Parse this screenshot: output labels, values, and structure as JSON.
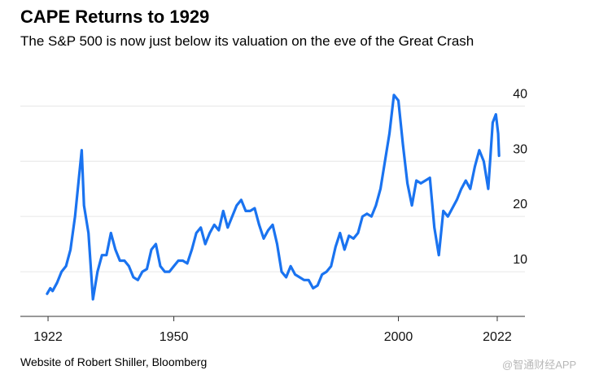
{
  "title": "CAPE Returns to 1929",
  "subtitle": "The S&P 500 is now just below its valuation on the eve of the Great Crash",
  "source": "Website of Robert Shiller, Bloomberg",
  "watermark": "@智通财经APP",
  "colors": {
    "line": "#1a73f0",
    "grid": "#e6e6e6",
    "axis": "#333333"
  },
  "chart_data": {
    "type": "line",
    "title": "CAPE Returns to 1929",
    "xlabel": "",
    "ylabel": "",
    "xlim": [
      1920,
      2024
    ],
    "ylim": [
      2.5,
      43
    ],
    "y_axis_position": "right",
    "grid": "horizontal",
    "x_ticks": [
      1922,
      1950,
      2000,
      2022
    ],
    "y_ticks": [
      10,
      20,
      30,
      40
    ],
    "series": [
      {
        "values": [
          [
            1921.8,
            6
          ],
          [
            1922.5,
            7
          ],
          [
            1923,
            6.5
          ],
          [
            1924,
            8
          ],
          [
            1925,
            10
          ],
          [
            1926,
            11
          ],
          [
            1927,
            14
          ],
          [
            1928,
            20
          ],
          [
            1929.5,
            32
          ],
          [
            1930,
            22
          ],
          [
            1931,
            17
          ],
          [
            1932,
            5
          ],
          [
            1933,
            10
          ],
          [
            1934,
            13
          ],
          [
            1935,
            13
          ],
          [
            1936,
            17
          ],
          [
            1937,
            14
          ],
          [
            1938,
            12
          ],
          [
            1939,
            12
          ],
          [
            1940,
            11
          ],
          [
            1941,
            9
          ],
          [
            1942,
            8.5
          ],
          [
            1943,
            10
          ],
          [
            1944,
            10.5
          ],
          [
            1945,
            14
          ],
          [
            1946,
            15
          ],
          [
            1947,
            11
          ],
          [
            1948,
            10
          ],
          [
            1949,
            10
          ],
          [
            1950,
            11
          ],
          [
            1951,
            12
          ],
          [
            1952,
            12
          ],
          [
            1953,
            11.5
          ],
          [
            1954,
            14
          ],
          [
            1955,
            17
          ],
          [
            1956,
            18
          ],
          [
            1957,
            15
          ],
          [
            1958,
            17
          ],
          [
            1959,
            18.5
          ],
          [
            1960,
            17.5
          ],
          [
            1961,
            21
          ],
          [
            1962,
            18
          ],
          [
            1963,
            20
          ],
          [
            1964,
            22
          ],
          [
            1965,
            23
          ],
          [
            1966,
            21
          ],
          [
            1967,
            21
          ],
          [
            1968,
            21.5
          ],
          [
            1969,
            18.5
          ],
          [
            1970,
            16
          ],
          [
            1971,
            17.5
          ],
          [
            1972,
            18.5
          ],
          [
            1973,
            15
          ],
          [
            1974,
            10
          ],
          [
            1975,
            9
          ],
          [
            1976,
            11
          ],
          [
            1977,
            9.5
          ],
          [
            1978,
            9
          ],
          [
            1979,
            8.5
          ],
          [
            1980,
            8.5
          ],
          [
            1981,
            7
          ],
          [
            1982,
            7.5
          ],
          [
            1983,
            9.5
          ],
          [
            1984,
            10
          ],
          [
            1985,
            11
          ],
          [
            1986,
            14.5
          ],
          [
            1987,
            17
          ],
          [
            1988,
            14
          ],
          [
            1989,
            16.5
          ],
          [
            1990,
            16
          ],
          [
            1991,
            17
          ],
          [
            1992,
            20
          ],
          [
            1993,
            20.5
          ],
          [
            1994,
            20
          ],
          [
            1995,
            22
          ],
          [
            1996,
            25
          ],
          [
            1997,
            30
          ],
          [
            1998,
            35
          ],
          [
            1999,
            42
          ],
          [
            2000,
            41
          ],
          [
            2001,
            33
          ],
          [
            2002,
            26
          ],
          [
            2003,
            22
          ],
          [
            2004,
            26.5
          ],
          [
            2005,
            26
          ],
          [
            2006,
            26.5
          ],
          [
            2007,
            27
          ],
          [
            2008,
            18
          ],
          [
            2009,
            13
          ],
          [
            2010,
            21
          ],
          [
            2011,
            20
          ],
          [
            2012,
            21.5
          ],
          [
            2013,
            23
          ],
          [
            2014,
            25
          ],
          [
            2015,
            26.5
          ],
          [
            2016,
            25
          ],
          [
            2017,
            29
          ],
          [
            2018,
            32
          ],
          [
            2019,
            30
          ],
          [
            2020,
            25
          ],
          [
            2021,
            37
          ],
          [
            2021.7,
            38.5
          ],
          [
            2022.2,
            35
          ],
          [
            2022.4,
            31
          ]
        ]
      }
    ]
  }
}
